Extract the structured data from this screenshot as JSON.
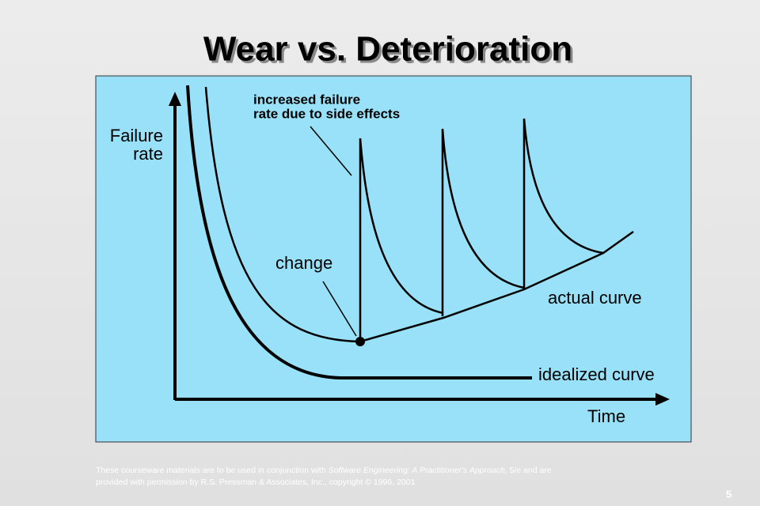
{
  "header": {
    "title": "Wear vs. Deterioration"
  },
  "diagram": {
    "y_axis_label": [
      "Failure",
      "rate"
    ],
    "x_axis_label": "Time",
    "annotation_side_effects": [
      "increased failure",
      "rate due to side effects"
    ],
    "annotation_change": "change",
    "actual_curve_label": "actual curve",
    "idealized_curve_label": "idealized curve"
  },
  "footer": {
    "notice": [
      "These courseware materials are to be used in conjunction with ",
      "Software Engineering: A Practitioner's Approach,",
      " 5/e and are",
      "provided with permission by R.S. Pressman & Associates, Inc., copyright © 1996, 2001"
    ],
    "page_number": "5"
  }
}
